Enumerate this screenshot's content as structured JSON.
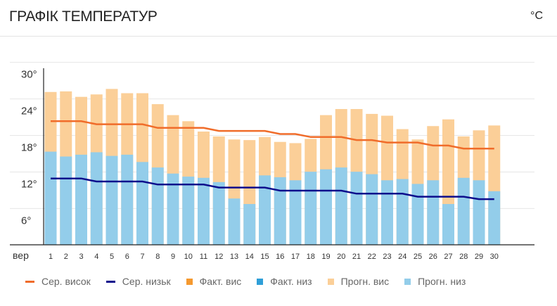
{
  "header": {
    "title": "ГРАФІК ТЕМПЕРАТУР",
    "unit": "°C"
  },
  "chart_data": {
    "type": "bar",
    "month_label": "вер",
    "categories": [
      "1",
      "2",
      "3",
      "4",
      "5",
      "6",
      "7",
      "8",
      "9",
      "10",
      "11",
      "12",
      "13",
      "14",
      "15",
      "16",
      "17",
      "18",
      "19",
      "20",
      "21",
      "22",
      "23",
      "24",
      "25",
      "26",
      "27",
      "28",
      "29",
      "30"
    ],
    "y_ticks": [
      "6°",
      "12°",
      "18°",
      "24°",
      "30°"
    ],
    "ylim": [
      2,
      31
    ],
    "series": [
      {
        "name": "Прогн. вис",
        "kind": "bar",
        "color": "#fbcf98",
        "values": [
          27.1,
          27.2,
          26.3,
          26.7,
          27.6,
          26.9,
          26.9,
          25.1,
          23.3,
          22.3,
          20.6,
          19.8,
          19.3,
          19.2,
          19.7,
          18.9,
          18.7,
          19.4,
          23.3,
          24.3,
          24.3,
          23.5,
          23.2,
          21.0,
          19.3,
          21.5,
          22.6,
          19.8,
          20.8,
          21.6
        ]
      },
      {
        "name": "Прогн. низ",
        "kind": "bar",
        "color": "#93cdea",
        "values": [
          17.3,
          16.5,
          16.8,
          17.2,
          16.6,
          16.8,
          15.6,
          14.7,
          13.7,
          13.2,
          13.0,
          12.3,
          9.6,
          8.7,
          13.4,
          13.1,
          12.6,
          14.0,
          14.4,
          14.7,
          14.0,
          13.6,
          12.6,
          12.8,
          12.0,
          12.6,
          8.7,
          13.0,
          12.6,
          10.8
        ]
      },
      {
        "name": "Сер. висок",
        "kind": "line",
        "color": "#f06c2a",
        "values": [
          22.3,
          22.3,
          22.3,
          21.8,
          21.8,
          21.8,
          21.8,
          21.2,
          21.2,
          21.2,
          21.2,
          20.7,
          20.7,
          20.7,
          20.7,
          20.2,
          20.2,
          19.7,
          19.7,
          19.7,
          19.2,
          19.2,
          18.8,
          18.8,
          18.8,
          18.3,
          18.3,
          17.8,
          17.8,
          17.8
        ]
      },
      {
        "name": "Сер. низьк",
        "kind": "line",
        "color": "#0d0d8c",
        "values": [
          12.9,
          12.9,
          12.9,
          12.4,
          12.4,
          12.4,
          12.4,
          11.9,
          11.9,
          11.9,
          11.9,
          11.4,
          11.4,
          11.4,
          11.4,
          10.9,
          10.9,
          10.9,
          10.9,
          10.9,
          10.4,
          10.4,
          10.4,
          10.4,
          9.9,
          9.9,
          9.9,
          9.9,
          9.5,
          9.5
        ]
      }
    ],
    "legend": [
      {
        "label": "Сер. висок",
        "shape": "line",
        "color": "#f06c2a"
      },
      {
        "label": "Сер. низьк",
        "shape": "line",
        "color": "#0d0d8c"
      },
      {
        "label": "Факт. вис",
        "shape": "square",
        "color": "#f5992f"
      },
      {
        "label": "Факт. низ",
        "shape": "square",
        "color": "#2f9fd8"
      },
      {
        "label": "Прогн. вис",
        "shape": "square",
        "color": "#fbcf98"
      },
      {
        "label": "Прогн. низ",
        "shape": "square",
        "color": "#93cdea"
      }
    ],
    "legend_position": "bottom"
  }
}
